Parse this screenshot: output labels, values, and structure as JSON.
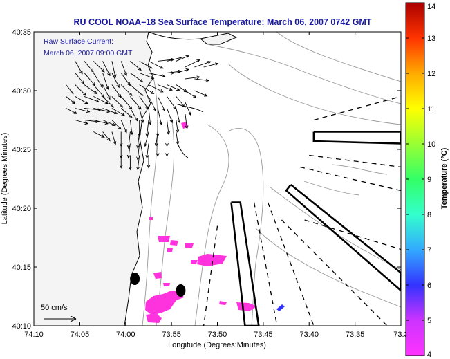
{
  "chart_data": {
    "type": "map",
    "title": "RU COOL  NOAA–18  Sea Surface Temperature:  March 06, 2007 0742 GMT",
    "annotation_line1": "Raw Surface Current:",
    "annotation_line2": "March 06, 2007 09:00 GMT",
    "xlabel": "Longitude (Degrees:Minutes)",
    "ylabel": "Latitude (Degrees:Minutes)",
    "x_ticks": [
      {
        "label": "74:10",
        "value": -74.1667
      },
      {
        "label": "74:05",
        "value": -74.0833
      },
      {
        "label": "74:00",
        "value": -74.0
      },
      {
        "label": "73:55",
        "value": -73.9167
      },
      {
        "label": "73:50",
        "value": -73.8333
      },
      {
        "label": "73:45",
        "value": -73.75
      },
      {
        "label": "73:40",
        "value": -73.6667
      },
      {
        "label": "73:35",
        "value": -73.5833
      },
      {
        "label": "73:3",
        "value": -73.5
      }
    ],
    "y_ticks": [
      {
        "label": "40:35",
        "value": 40.5833
      },
      {
        "label": "40:30",
        "value": 40.5
      },
      {
        "label": "40:25",
        "value": 40.4167
      },
      {
        "label": "40:20",
        "value": 40.3333
      },
      {
        "label": "40:15",
        "value": 40.25
      },
      {
        "label": "40:10",
        "value": 40.1667
      }
    ],
    "xlim": [
      -74.1667,
      -73.5
    ],
    "ylim": [
      40.1667,
      40.5833
    ],
    "scale_label": "50 cm/s",
    "colorbar": {
      "label": "Temperature (°C)",
      "min": 4,
      "max": 14,
      "ticks": [
        "4",
        "5",
        "6",
        "7",
        "8",
        "9",
        "10",
        "11",
        "12",
        "13",
        "14"
      ],
      "colors": [
        "#ff33ff",
        "#cc33ff",
        "#3333ff",
        "#33aaff",
        "#33ffcc",
        "#33ff66",
        "#99ff33",
        "#ffff00",
        "#ffaa00",
        "#ff3300",
        "#aa0000"
      ]
    },
    "sst_patch_color": "#ff33dd",
    "vectors": [
      {
        "lon": -74.0917,
        "lat": 40.5417,
        "u": 0.4,
        "v": -0.7
      },
      {
        "lon": -74.075,
        "lat": 40.5417,
        "u": 0.5,
        "v": -0.6
      },
      {
        "lon": -74.0583,
        "lat": 40.5417,
        "u": 0.6,
        "v": -0.6
      },
      {
        "lon": -74.0417,
        "lat": 40.5417,
        "u": 0.4,
        "v": -0.8
      },
      {
        "lon": -74.025,
        "lat": 40.5417,
        "u": 0.2,
        "v": -0.9
      },
      {
        "lon": -74.0083,
        "lat": 40.5417,
        "u": 0.3,
        "v": -0.8
      },
      {
        "lon": -73.9917,
        "lat": 40.5417,
        "u": 0.6,
        "v": -0.5
      },
      {
        "lon": -73.975,
        "lat": 40.5417,
        "u": 0.7,
        "v": -0.4
      },
      {
        "lon": -73.9583,
        "lat": 40.5417,
        "u": 0.8,
        "v": -0.4
      },
      {
        "lon": -73.9417,
        "lat": 40.5417,
        "u": 0.9,
        "v": 0.1
      },
      {
        "lon": -73.925,
        "lat": 40.5417,
        "u": 0.8,
        "v": 0.2
      },
      {
        "lon": -73.9083,
        "lat": 40.5417,
        "u": 0.7,
        "v": 0.3
      },
      {
        "lon": -73.8917,
        "lat": 40.5333,
        "u": 0.8,
        "v": 0.4
      },
      {
        "lon": -73.875,
        "lat": 40.5333,
        "u": 0.9,
        "v": 0.3
      },
      {
        "lon": -73.8583,
        "lat": 40.5333,
        "u": 0.8,
        "v": 0.2
      },
      {
        "lon": -74.0917,
        "lat": 40.525,
        "u": 0.5,
        "v": -0.6
      },
      {
        "lon": -74.075,
        "lat": 40.525,
        "u": 0.6,
        "v": -0.7
      },
      {
        "lon": -74.0583,
        "lat": 40.525,
        "u": 0.5,
        "v": -0.8
      },
      {
        "lon": -74.0417,
        "lat": 40.525,
        "u": 0.3,
        "v": -0.9
      },
      {
        "lon": -74.025,
        "lat": 40.525,
        "u": 0.4,
        "v": -0.8
      },
      {
        "lon": -74.0083,
        "lat": 40.525,
        "u": 0.5,
        "v": -0.7
      },
      {
        "lon": -73.9917,
        "lat": 40.525,
        "u": 0.7,
        "v": -0.5
      },
      {
        "lon": -73.975,
        "lat": 40.525,
        "u": 0.8,
        "v": -0.3
      },
      {
        "lon": -73.9583,
        "lat": 40.525,
        "u": 0.9,
        "v": -0.2
      },
      {
        "lon": -73.9417,
        "lat": 40.525,
        "u": 0.9,
        "v": 0.0
      },
      {
        "lon": -73.925,
        "lat": 40.525,
        "u": 0.8,
        "v": 0.1
      },
      {
        "lon": -73.9083,
        "lat": 40.525,
        "u": 0.7,
        "v": 0.2
      },
      {
        "lon": -73.8917,
        "lat": 40.5167,
        "u": 0.8,
        "v": 0.1
      },
      {
        "lon": -73.875,
        "lat": 40.5167,
        "u": 0.8,
        "v": -0.1
      },
      {
        "lon": -74.1083,
        "lat": 40.5083,
        "u": 0.4,
        "v": -0.5
      },
      {
        "lon": -74.0917,
        "lat": 40.5083,
        "u": 0.6,
        "v": -0.6
      },
      {
        "lon": -74.075,
        "lat": 40.5083,
        "u": 0.7,
        "v": -0.5
      },
      {
        "lon": -74.0583,
        "lat": 40.5083,
        "u": 0.6,
        "v": -0.7
      },
      {
        "lon": -74.0417,
        "lat": 40.5083,
        "u": 0.4,
        "v": -0.8
      },
      {
        "lon": -74.025,
        "lat": 40.5083,
        "u": 0.5,
        "v": -0.7
      },
      {
        "lon": -74.0083,
        "lat": 40.5083,
        "u": 0.6,
        "v": -0.6
      },
      {
        "lon": -73.9917,
        "lat": 40.5083,
        "u": 0.7,
        "v": -0.6
      },
      {
        "lon": -73.975,
        "lat": 40.5083,
        "u": 0.8,
        "v": -0.5
      },
      {
        "lon": -73.9583,
        "lat": 40.5083,
        "u": 0.8,
        "v": -0.4
      },
      {
        "lon": -73.9417,
        "lat": 40.5083,
        "u": 0.8,
        "v": -0.3
      },
      {
        "lon": -73.925,
        "lat": 40.5083,
        "u": 0.7,
        "v": -0.3
      },
      {
        "lon": -73.9083,
        "lat": 40.5083,
        "u": 0.6,
        "v": -0.4
      },
      {
        "lon": -73.8917,
        "lat": 40.5,
        "u": 0.6,
        "v": -0.4
      },
      {
        "lon": -73.875,
        "lat": 40.5,
        "u": 0.7,
        "v": -0.3
      },
      {
        "lon": -74.1083,
        "lat": 40.4917,
        "u": 0.5,
        "v": -0.4
      },
      {
        "lon": -74.0917,
        "lat": 40.4917,
        "u": 0.7,
        "v": -0.4
      },
      {
        "lon": -74.075,
        "lat": 40.4917,
        "u": 0.8,
        "v": -0.3
      },
      {
        "lon": -74.0583,
        "lat": 40.4917,
        "u": 0.8,
        "v": -0.4
      },
      {
        "lon": -74.0417,
        "lat": 40.4917,
        "u": 0.6,
        "v": -0.6
      },
      {
        "lon": -74.025,
        "lat": 40.4917,
        "u": 0.6,
        "v": -0.6
      },
      {
        "lon": -74.0083,
        "lat": 40.4917,
        "u": 0.6,
        "v": -0.7
      },
      {
        "lon": -73.9917,
        "lat": 40.4917,
        "u": 0.6,
        "v": -0.7
      },
      {
        "lon": -73.975,
        "lat": 40.4917,
        "u": 0.5,
        "v": -0.7
      },
      {
        "lon": -73.9583,
        "lat": 40.4917,
        "u": 0.4,
        "v": -0.8
      },
      {
        "lon": -73.9417,
        "lat": 40.4917,
        "u": 0.4,
        "v": -0.8
      },
      {
        "lon": -73.925,
        "lat": 40.4917,
        "u": 0.5,
        "v": -0.7
      },
      {
        "lon": -73.9083,
        "lat": 40.4917,
        "u": 0.5,
        "v": -0.6
      },
      {
        "lon": -73.8917,
        "lat": 40.4833,
        "u": 0.3,
        "v": -0.7
      },
      {
        "lon": -74.1083,
        "lat": 40.475,
        "u": 0.6,
        "v": -0.3
      },
      {
        "lon": -74.0917,
        "lat": 40.475,
        "u": 0.8,
        "v": -0.2
      },
      {
        "lon": -74.075,
        "lat": 40.475,
        "u": 0.9,
        "v": -0.1
      },
      {
        "lon": -74.0583,
        "lat": 40.475,
        "u": 0.9,
        "v": -0.2
      },
      {
        "lon": -74.0417,
        "lat": 40.475,
        "u": 0.8,
        "v": -0.3
      },
      {
        "lon": -74.025,
        "lat": 40.475,
        "u": 0.7,
        "v": -0.4
      },
      {
        "lon": -74.0083,
        "lat": 40.475,
        "u": 0.6,
        "v": -0.5
      },
      {
        "lon": -73.9917,
        "lat": 40.475,
        "u": 0.4,
        "v": -0.7
      },
      {
        "lon": -73.975,
        "lat": 40.475,
        "u": 0.2,
        "v": -0.8
      },
      {
        "lon": -73.9583,
        "lat": 40.475,
        "u": 0.1,
        "v": -0.9
      },
      {
        "lon": -73.9417,
        "lat": 40.475,
        "u": 0.2,
        "v": -0.9
      },
      {
        "lon": -73.925,
        "lat": 40.475,
        "u": 0.3,
        "v": -0.8
      },
      {
        "lon": -73.9083,
        "lat": 40.475,
        "u": 0.2,
        "v": -0.8
      },
      {
        "lon": -73.8917,
        "lat": 40.4667,
        "u": 0.1,
        "v": -0.8
      },
      {
        "lon": -74.0917,
        "lat": 40.4583,
        "u": 0.7,
        "v": -0.2
      },
      {
        "lon": -74.075,
        "lat": 40.4583,
        "u": 0.8,
        "v": -0.1
      },
      {
        "lon": -74.0583,
        "lat": 40.4583,
        "u": 0.8,
        "v": -0.2
      },
      {
        "lon": -74.0417,
        "lat": 40.4583,
        "u": 0.7,
        "v": -0.3
      },
      {
        "lon": -74.025,
        "lat": 40.4583,
        "u": 0.5,
        "v": -0.5
      },
      {
        "lon": -74.0083,
        "lat": 40.4583,
        "u": 0.3,
        "v": -0.7
      },
      {
        "lon": -73.9917,
        "lat": 40.4583,
        "u": 0.1,
        "v": -0.8
      },
      {
        "lon": -73.975,
        "lat": 40.4583,
        "u": 0.0,
        "v": -0.9
      },
      {
        "lon": -73.9583,
        "lat": 40.4583,
        "u": -0.1,
        "v": -0.9
      },
      {
        "lon": -73.9417,
        "lat": 40.4583,
        "u": 0.0,
        "v": -0.9
      },
      {
        "lon": -73.925,
        "lat": 40.4583,
        "u": 0.1,
        "v": -0.8
      },
      {
        "lon": -73.9083,
        "lat": 40.4583,
        "u": 0.1,
        "v": -0.7
      },
      {
        "lon": -74.0583,
        "lat": 40.4417,
        "u": 0.6,
        "v": -0.3
      },
      {
        "lon": -74.0417,
        "lat": 40.4417,
        "u": 0.4,
        "v": -0.5
      },
      {
        "lon": -74.025,
        "lat": 40.4417,
        "u": 0.2,
        "v": -0.7
      },
      {
        "lon": -74.0083,
        "lat": 40.4417,
        "u": 0.0,
        "v": -0.8
      },
      {
        "lon": -73.9917,
        "lat": 40.4417,
        "u": -0.1,
        "v": -0.9
      },
      {
        "lon": -73.975,
        "lat": 40.4417,
        "u": -0.1,
        "v": -0.9
      },
      {
        "lon": -73.9583,
        "lat": 40.4417,
        "u": -0.2,
        "v": -0.8
      },
      {
        "lon": -73.9417,
        "lat": 40.4417,
        "u": -0.1,
        "v": -0.8
      },
      {
        "lon": -73.925,
        "lat": 40.4417,
        "u": 0.0,
        "v": -0.8
      },
      {
        "lon": -73.9083,
        "lat": 40.4417,
        "u": 0.1,
        "v": -0.7
      },
      {
        "lon": -74.0083,
        "lat": 40.425,
        "u": 0.0,
        "v": -0.8
      },
      {
        "lon": -73.9917,
        "lat": 40.425,
        "u": -0.1,
        "v": -0.8
      },
      {
        "lon": -73.975,
        "lat": 40.425,
        "u": -0.1,
        "v": -0.9
      },
      {
        "lon": -73.9583,
        "lat": 40.425,
        "u": -0.1,
        "v": -0.8
      },
      {
        "lon": -73.9417,
        "lat": 40.425,
        "u": 0.0,
        "v": -0.7
      },
      {
        "lon": -73.925,
        "lat": 40.425,
        "u": 0.0,
        "v": -0.7
      },
      {
        "lon": -74.0083,
        "lat": 40.4083,
        "u": 0.0,
        "v": -0.7
      },
      {
        "lon": -73.9917,
        "lat": 40.4083,
        "u": 0.0,
        "v": -0.8
      },
      {
        "lon": -73.975,
        "lat": 40.4083,
        "u": -0.1,
        "v": -0.8
      },
      {
        "lon": -73.9583,
        "lat": 40.4083,
        "u": 0.0,
        "v": -0.7
      }
    ],
    "hf_radar_boxes": [
      {
        "name": "box-a",
        "lonlat": [
          [
            -73.8083,
            40.3417
          ],
          [
            -73.7917,
            40.3417
          ],
          [
            -73.7583,
            40.1667
          ],
          [
            -73.7833,
            40.1667
          ],
          [
            -73.8083,
            40.3417
          ]
        ]
      },
      {
        "name": "box-b",
        "lonlat": [
          [
            -73.6583,
            40.4417
          ],
          [
            -73.5,
            40.4417
          ],
          [
            -73.5,
            40.425
          ],
          [
            -73.6583,
            40.4283
          ],
          [
            -73.6583,
            40.4417
          ]
        ]
      },
      {
        "name": "box-c",
        "lonlat": [
          [
            -73.7,
            40.3667
          ],
          [
            -73.5,
            40.2417
          ],
          [
            -73.5,
            40.2167
          ],
          [
            -73.7083,
            40.3583
          ],
          [
            -73.7,
            40.3667
          ]
        ]
      }
    ],
    "dashed_rays": [
      [
        [
          -73.6583,
          40.4583
        ],
        [
          -73.5,
          40.4917
        ]
      ],
      [
        [
          -73.6667,
          40.4083
        ],
        [
          -73.5,
          40.3917
        ]
      ],
      [
        [
          -73.6833,
          40.3917
        ],
        [
          -73.5,
          40.3583
        ]
      ],
      [
        [
          -73.675,
          40.3167
        ],
        [
          -73.5,
          40.275
        ]
      ],
      [
        [
          -73.7167,
          40.3167
        ],
        [
          -73.525,
          40.1667
        ]
      ],
      [
        [
          -73.7417,
          40.3417
        ],
        [
          -73.6583,
          40.1667
        ]
      ],
      [
        [
          -73.7667,
          40.3417
        ],
        [
          -73.725,
          40.1667
        ]
      ],
      [
        [
          -73.8333,
          40.3083
        ],
        [
          -73.8583,
          40.1667
        ]
      ]
    ],
    "ocean_stations": [
      {
        "lon": -73.9833,
        "lat": 40.2333
      },
      {
        "lon": -73.9,
        "lat": 40.2167
      }
    ]
  }
}
